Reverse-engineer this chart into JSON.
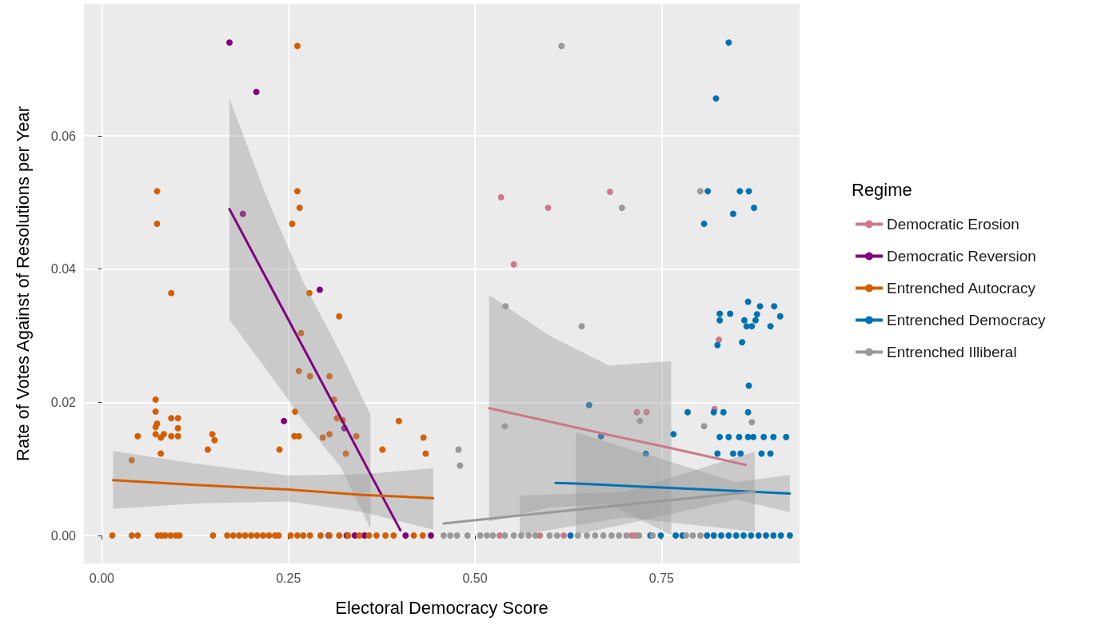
{
  "chart_data": {
    "type": "scatter",
    "xlabel": "Electoral Democracy Score",
    "ylabel": "Rate of Votes Against of Resolutions per Year",
    "legend_title": "Regime",
    "legend": "right",
    "grid": true,
    "xlim": [
      -0.024,
      0.935
    ],
    "ylim": [
      -0.0042,
      0.0798
    ],
    "xticks": [
      {
        "value": 0,
        "label": "0.00"
      },
      {
        "value": 0.25,
        "label": "0.25"
      },
      {
        "value": 0.5,
        "label": "0.50"
      },
      {
        "value": 0.75,
        "label": "0.75"
      }
    ],
    "yticks": [
      {
        "value": 0,
        "label": "0.00"
      },
      {
        "value": 0.02,
        "label": "0.02"
      },
      {
        "value": 0.04,
        "label": "0.04"
      },
      {
        "value": 0.06,
        "label": "0.06"
      }
    ],
    "series": [
      {
        "marker": "circle",
        "name": "Democratic Erosion",
        "color": "#cc7a8a",
        "x": [
          0.535,
          0.598,
          0.552,
          0.681,
          0.717,
          0.73,
          0.827,
          0.821,
          0.533,
          0.587,
          0.619,
          0.71,
          0.715
        ],
        "values": [
          0.0508,
          0.0492,
          0.0407,
          0.0516,
          0.0185,
          0.0185,
          0.0294,
          0.019,
          0,
          0,
          0,
          0,
          0
        ]
      },
      {
        "marker": "circle",
        "name": "Democratic Reversion",
        "color": "#800080",
        "x": [
          0.171,
          0.207,
          0.189,
          0.292,
          0.244,
          0.325,
          0.304,
          0.328,
          0.339,
          0.352,
          0.407,
          0.441
        ],
        "values": [
          0.074,
          0.0666,
          0.0483,
          0.0369,
          0.0172,
          0.0161,
          0,
          0,
          0,
          0,
          0,
          0
        ]
      },
      {
        "marker": "circle",
        "name": "Entrenched Autocracy",
        "color": "#d55e00",
        "x": [
          0.04,
          0.048,
          0.074,
          0.074,
          0.093,
          0.072,
          0.072,
          0.074,
          0.072,
          0.072,
          0.079,
          0.083,
          0.093,
          0.102,
          0.102,
          0.093,
          0.102,
          0.079,
          0.148,
          0.151,
          0.142,
          0.238,
          0.262,
          0.262,
          0.265,
          0.255,
          0.278,
          0.318,
          0.267,
          0.264,
          0.279,
          0.305,
          0.311,
          0.259,
          0.315,
          0.323,
          0.258,
          0.264,
          0.296,
          0.305,
          0.341,
          0.327,
          0.398,
          0.376,
          0.431,
          0.434,
          0.014,
          0.04,
          0.048,
          0.075,
          0.08,
          0.085,
          0.092,
          0.099,
          0.104,
          0.149,
          0.168,
          0.176,
          0.184,
          0.192,
          0.2,
          0.208,
          0.216,
          0.224,
          0.232,
          0.237,
          0.253,
          0.262,
          0.27,
          0.279,
          0.293,
          0.305,
          0.318,
          0.33,
          0.345,
          0.358,
          0.368,
          0.38,
          0.391,
          0.418,
          0.43
        ],
        "values": [
          0.0113,
          0.0149,
          0.0517,
          0.0468,
          0.0364,
          0.0204,
          0.0186,
          0.0168,
          0.0163,
          0.0152,
          0.0147,
          0.0152,
          0.0176,
          0.0176,
          0.0161,
          0.0149,
          0.0149,
          0.0123,
          0.0152,
          0.0143,
          0.0129,
          0.0129,
          0.0735,
          0.0517,
          0.0492,
          0.0468,
          0.0364,
          0.0329,
          0.0304,
          0.0247,
          0.0239,
          0.0239,
          0.0204,
          0.0186,
          0.0176,
          0.0173,
          0.0149,
          0.0149,
          0.0147,
          0.0152,
          0.0149,
          0.0123,
          0.0172,
          0.0129,
          0.0147,
          0.0123,
          0,
          0,
          0,
          0,
          0,
          0,
          0,
          0,
          0,
          0,
          0,
          0,
          0,
          0,
          0,
          0,
          0,
          0,
          0,
          0,
          0,
          0,
          0,
          0,
          0,
          0,
          0,
          0,
          0,
          0,
          0,
          0,
          0,
          0,
          0
        ]
      },
      {
        "marker": "circle",
        "name": "Entrenched Democracy",
        "color": "#0072b2",
        "x": [
          0.84,
          0.823,
          0.812,
          0.855,
          0.867,
          0.874,
          0.846,
          0.807,
          0.866,
          0.882,
          0.901,
          0.828,
          0.842,
          0.828,
          0.909,
          0.861,
          0.878,
          0.876,
          0.864,
          0.871,
          0.896,
          0.858,
          0.825,
          0.867,
          0.785,
          0.82,
          0.833,
          0.866,
          0.766,
          0.828,
          0.84,
          0.854,
          0.866,
          0.873,
          0.887,
          0.9,
          0.917,
          0.825,
          0.846,
          0.856,
          0.884,
          0.896,
          0.729,
          0.669,
          0.653,
          0.628,
          0.735,
          0.749,
          0.769,
          0.778,
          0.811,
          0.82,
          0.83,
          0.84,
          0.85,
          0.86,
          0.87,
          0.88,
          0.89,
          0.9,
          0.91,
          0.922
        ],
        "values": [
          0.074,
          0.0656,
          0.0517,
          0.0517,
          0.0517,
          0.0492,
          0.0483,
          0.0468,
          0.0351,
          0.0344,
          0.0344,
          0.0333,
          0.0333,
          0.0323,
          0.0329,
          0.0323,
          0.0332,
          0.0323,
          0.0314,
          0.0314,
          0.0314,
          0.029,
          0.0286,
          0.0225,
          0.0185,
          0.0185,
          0.0185,
          0.0185,
          0.0152,
          0.0148,
          0.0148,
          0.0148,
          0.0148,
          0.0148,
          0.0148,
          0.0148,
          0.0148,
          0.0123,
          0.0123,
          0.0123,
          0.0123,
          0.0123,
          0.0123,
          0.0149,
          0.0196,
          0,
          0,
          0,
          0,
          0,
          0,
          0,
          0,
          0,
          0,
          0,
          0,
          0,
          0,
          0,
          0,
          0
        ]
      },
      {
        "marker": "circle",
        "name": "Entrenched Illiberal",
        "color": "#999999",
        "x": [
          0.616,
          0.541,
          0.643,
          0.54,
          0.478,
          0.48,
          0.697,
          0.802,
          0.721,
          0.807,
          0.871,
          0.458,
          0.467,
          0.476,
          0.49,
          0.507,
          0.516,
          0.524,
          0.54,
          0.552,
          0.562,
          0.572,
          0.581,
          0.6,
          0.61,
          0.638,
          0.65,
          0.661,
          0.672,
          0.683,
          0.693,
          0.703,
          0.72,
          0.738,
          0.783,
          0.792,
          0.802
        ],
        "values": [
          0.0735,
          0.0344,
          0.0314,
          0.0164,
          0.0129,
          0.0105,
          0.0492,
          0.0517,
          0.0172,
          0.0164,
          0.017,
          0,
          0,
          0,
          0,
          0,
          0,
          0,
          0,
          0,
          0,
          0,
          0,
          0,
          0,
          0,
          0,
          0,
          0,
          0,
          0,
          0,
          0,
          0,
          0,
          0,
          0
        ]
      },
      {
        "type": "line",
        "color": "#cc7a8a",
        "x": [
          0.519,
          0.6,
          0.68,
          0.763,
          0.863
        ],
        "values": [
          0.0191,
          0.0171,
          0.0151,
          0.0131,
          0.0106
        ],
        "lower": [
          0.0021,
          0.0042,
          0.0047,
          0.0001,
          null
        ],
        "upper": [
          0.0361,
          0.03,
          0.0255,
          0.0262,
          null
        ]
      },
      {
        "type": "line",
        "color": "#800080",
        "x": [
          0.171,
          0.22,
          0.27,
          0.32,
          0.36,
          0.4
        ],
        "values": [
          0.049,
          0.0387,
          0.0282,
          0.0177,
          0.0092,
          0.0008
        ],
        "lower": [
          0.0324,
          0.025,
          0.0172,
          0.0103,
          0.001,
          null
        ],
        "upper": [
          0.0656,
          0.051,
          0.038,
          0.0274,
          0.0181,
          null
        ]
      },
      {
        "type": "line",
        "color": "#d55e00",
        "x": [
          0.015,
          0.125,
          0.25,
          0.35,
          0.444
        ],
        "values": [
          0.0083,
          0.0076,
          0.0069,
          0.0061,
          0.0056
        ],
        "lower": [
          0.004,
          0.0048,
          0.0051,
          0.0035,
          0.0009
        ],
        "upper": [
          0.0127,
          0.0108,
          0.009,
          0.0092,
          0.0101
        ]
      },
      {
        "type": "line",
        "color": "#0072b2",
        "x": [
          0.608,
          0.635,
          0.75,
          0.85,
          0.922
        ],
        "values": [
          0.0079,
          0.0078,
          0.0072,
          0.0067,
          0.0063
        ],
        "lower": [
          null,
          0.0001,
          0.0029,
          0.0054,
          0.0035
        ],
        "upper": [
          null,
          0.0155,
          0.0115,
          0.008,
          0.0091
        ]
      },
      {
        "type": "line",
        "color": "#999999",
        "x": [
          0.458,
          0.56,
          0.7,
          0.875
        ],
        "values": [
          0.0018,
          0.003,
          0.0046,
          0.0066
        ],
        "lower": [
          null,
          0.0001,
          0.0027,
          0.0006
        ],
        "upper": [
          null,
          0.006,
          0.0065,
          0.0126
        ]
      }
    ]
  }
}
